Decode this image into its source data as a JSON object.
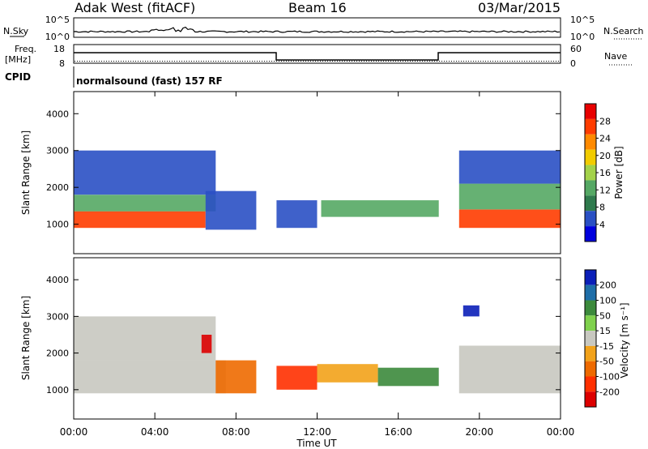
{
  "header": {
    "title": "Adak West (fitACF)",
    "beam": "Beam 16",
    "date": "03/Mar/2015"
  },
  "panels": {
    "nsky": {
      "label": "N.Sky",
      "ticks": [
        "10^5",
        "10^0"
      ],
      "right_label": "N.Search",
      "right_ticks": [
        "10^5",
        "10^0"
      ]
    },
    "freq": {
      "label_line1": "Freq.",
      "label_line2": "[MHz]",
      "ticks": [
        "18",
        "8"
      ],
      "right_label": "Nave",
      "right_ticks": [
        "60",
        "0"
      ]
    },
    "cpid": {
      "label": "CPID",
      "text": "normalsound (fast) 157 RF"
    }
  },
  "colors": {
    "power": [
      "#0000dd",
      "#2a50c4",
      "#2f7a4d",
      "#55a864",
      "#a3d24a",
      "#f2cc00",
      "#ff8a00",
      "#ff3c00",
      "#e80000"
    ],
    "velocity": [
      "#0b1fb8",
      "#1e6ea8",
      "#3c8a3c",
      "#7fd14d",
      "#c8c8c0",
      "#f2a21a",
      "#ee6a00",
      "#ff3000",
      "#dd0000"
    ]
  },
  "chart_data": [
    {
      "type": "heatmap",
      "name": "power",
      "ylabel": "Slant Range [km]",
      "yticks": [
        "1000",
        "2000",
        "3000",
        "4000"
      ],
      "ylim": [
        200,
        4600
      ],
      "colorbar_label": "Power [dB]",
      "colorbar_ticks": [
        "4",
        "8",
        "12",
        "16",
        "20",
        "24",
        "28"
      ],
      "regions": [
        {
          "x0": 0.0,
          "x1": 6.5,
          "y0": 900,
          "y1": 1350,
          "level": 7
        },
        {
          "x0": 0.0,
          "x1": 7.0,
          "y0": 1350,
          "y1": 1800,
          "level": 3
        },
        {
          "x0": 0.0,
          "x1": 7.0,
          "y0": 1800,
          "y1": 3000,
          "level": 1
        },
        {
          "x0": 6.5,
          "x1": 9.0,
          "y0": 850,
          "y1": 1900,
          "level": 1
        },
        {
          "x0": 10.0,
          "x1": 12.0,
          "y0": 900,
          "y1": 1650,
          "level": 1
        },
        {
          "x0": 12.2,
          "x1": 18.0,
          "y0": 1200,
          "y1": 1650,
          "level": 3
        },
        {
          "x0": 19.0,
          "x1": 24.0,
          "y0": 900,
          "y1": 1400,
          "level": 7
        },
        {
          "x0": 19.0,
          "x1": 24.0,
          "y0": 1400,
          "y1": 2100,
          "level": 3
        },
        {
          "x0": 19.0,
          "x1": 24.0,
          "y0": 2100,
          "y1": 3000,
          "level": 1
        }
      ]
    },
    {
      "type": "heatmap",
      "name": "velocity",
      "ylabel": "Slant Range [km]",
      "yticks": [
        "1000",
        "2000",
        "3000",
        "4000"
      ],
      "ylim": [
        200,
        4600
      ],
      "colorbar_label": "Velocity [m s⁻¹]",
      "colorbar_ticks": [
        "200",
        "100",
        "50",
        "15",
        "-15",
        "-50",
        "-100",
        "-200"
      ],
      "regions": [
        {
          "x0": 0.0,
          "x1": 7.5,
          "y0": 900,
          "y1": 1800,
          "level": 4
        },
        {
          "x0": 0.0,
          "x1": 7.0,
          "y0": 1800,
          "y1": 3000,
          "level": 4
        },
        {
          "x0": 6.3,
          "x1": 6.8,
          "y0": 2000,
          "y1": 2500,
          "level": 8
        },
        {
          "x0": 7.0,
          "x1": 9.0,
          "y0": 900,
          "y1": 1800,
          "level": 6
        },
        {
          "x0": 10.0,
          "x1": 12.0,
          "y0": 1000,
          "y1": 1650,
          "level": 7
        },
        {
          "x0": 12.0,
          "x1": 15.0,
          "y0": 1200,
          "y1": 1700,
          "level": 5
        },
        {
          "x0": 15.0,
          "x1": 18.0,
          "y0": 1100,
          "y1": 1600,
          "level": 2
        },
        {
          "x0": 19.2,
          "x1": 20.0,
          "y0": 3000,
          "y1": 3300,
          "level": 0
        },
        {
          "x0": 19.0,
          "x1": 24.0,
          "y0": 900,
          "y1": 2200,
          "level": 4
        }
      ]
    }
  ],
  "time_axis": {
    "label": "Time UT",
    "ticks": [
      "00:00",
      "04:00",
      "08:00",
      "12:00",
      "16:00",
      "20:00",
      "00:00"
    ],
    "xlim": [
      0,
      24
    ]
  }
}
